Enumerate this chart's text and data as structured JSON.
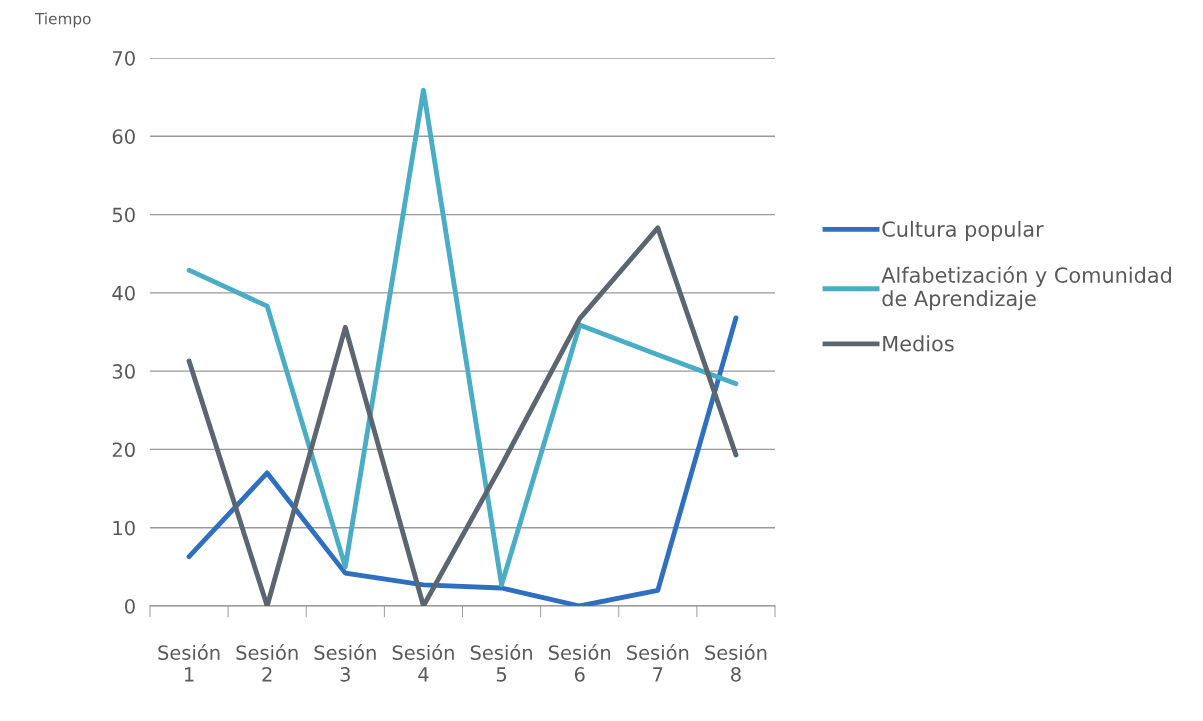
{
  "chart_data": {
    "type": "line",
    "ylabel": "Tiempo",
    "categories": [
      "Sesión\n1",
      "Sesión\n2",
      "Sesión\n3",
      "Sesión\n4",
      "Sesión\n5",
      "Sesión\n6",
      "Sesión\n7",
      "Sesión\n8"
    ],
    "series": [
      {
        "name": "Cultura popular",
        "color": "#2f6fbf",
        "values": [
          6.3,
          17.0,
          4.2,
          2.7,
          2.3,
          0,
          2.0,
          36.8
        ]
      },
      {
        "name": "Alfabetización y Comunidad\nde Aprendizaje",
        "color": "#4bacc6",
        "values": [
          42.9,
          38.3,
          5.0,
          65.9,
          2.7,
          35.9,
          32.1,
          28.4
        ]
      },
      {
        "name": "Medios",
        "color": "#5b6670",
        "values": [
          31.3,
          0,
          35.6,
          0,
          18.0,
          36.7,
          48.3,
          19.3
        ]
      }
    ],
    "ylim": [
      0,
      70
    ],
    "yticks": [
      0,
      10,
      20,
      30,
      40,
      50,
      60,
      70
    ],
    "grid": "y",
    "legend": "right",
    "marker": "none",
    "line_style": "solid"
  }
}
